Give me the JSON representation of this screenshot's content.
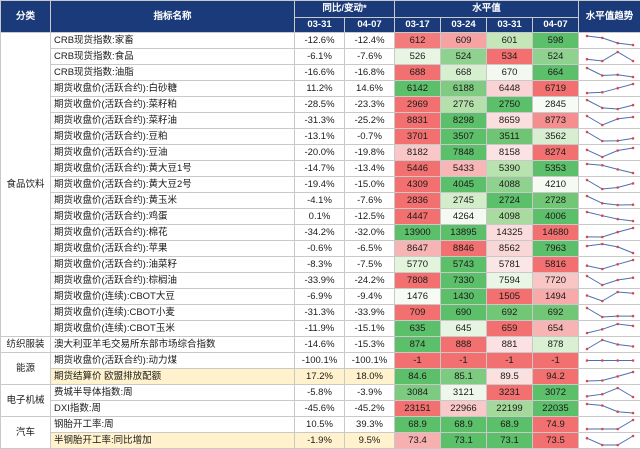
{
  "header": {
    "category": "分类",
    "indicator": "指标名称",
    "yoy_group": "同比/变动*",
    "level_group": "水平值",
    "trend": "水平值趋势",
    "yoy_dates": [
      "03-31",
      "04-07"
    ],
    "level_dates": [
      "03-17",
      "03-24",
      "03-31",
      "04-07"
    ]
  },
  "categories": [
    {
      "label": "食品饮料",
      "start": 0,
      "span": 19
    },
    {
      "label": "纺织服装",
      "start": 19,
      "span": 1
    },
    {
      "label": "能源",
      "start": 20,
      "span": 2
    },
    {
      "label": "电子机械",
      "start": 22,
      "span": 2
    },
    {
      "label": "汽车",
      "start": 24,
      "span": 2
    }
  ],
  "rows": [
    {
      "name": "CRB现货指数:家畜",
      "yoy": [
        "-12.6%",
        "-12.4%"
      ],
      "levels": [
        "612",
        "609",
        "601",
        "598"
      ],
      "level_colors": [
        "#f37b7b",
        "#f6a3a3",
        "#c4e6b8",
        "#5cbf6a"
      ]
    },
    {
      "name": "CRB现货指数:食品",
      "yoy": [
        "-6.1%",
        "-7.6%"
      ],
      "levels": [
        "526",
        "524",
        "534",
        "524"
      ],
      "level_colors": [
        "#e8f5e2",
        "#8fd18f",
        "#f27070",
        "#8fd18f"
      ]
    },
    {
      "name": "CRB现货指数:油脂",
      "yoy": [
        "-16.6%",
        "-16.8%"
      ],
      "levels": [
        "688",
        "668",
        "670",
        "664"
      ],
      "level_colors": [
        "#f27070",
        "#d6efcf",
        "#f3f8f0",
        "#5cbf6a"
      ]
    },
    {
      "name": "期货收盘价(活跃合约):白砂糖",
      "yoy": [
        "11.2%",
        "14.6%"
      ],
      "levels": [
        "6142",
        "6188",
        "6448",
        "6719"
      ],
      "level_colors": [
        "#5cbf6a",
        "#7fcb82",
        "#fad4d4",
        "#f27070"
      ]
    },
    {
      "name": "期货收盘价(活跃合约):菜籽粕",
      "yoy": [
        "-28.5%",
        "-23.3%"
      ],
      "levels": [
        "2969",
        "2776",
        "2750",
        "2845"
      ],
      "level_colors": [
        "#f27070",
        "#b5e0ac",
        "#5cbf6a",
        "#f7fbf5"
      ]
    },
    {
      "name": "期货收盘价(活跃合约):菜籽油",
      "yoy": [
        "-31.3%",
        "-25.2%"
      ],
      "levels": [
        "8831",
        "8298",
        "8659",
        "8773"
      ],
      "level_colors": [
        "#f27070",
        "#5cbf6a",
        "#fbdede",
        "#f58f8f"
      ]
    },
    {
      "name": "期货收盘价(活跃合约):豆粕",
      "yoy": [
        "-13.1%",
        "-0.7%"
      ],
      "levels": [
        "3701",
        "3507",
        "3511",
        "3562"
      ],
      "level_colors": [
        "#f27070",
        "#5cbf6a",
        "#6fc573",
        "#d7efd0"
      ]
    },
    {
      "name": "期货收盘价(活跃合约):豆油",
      "yoy": [
        "-20.0%",
        "-19.8%"
      ],
      "levels": [
        "8182",
        "7848",
        "8158",
        "8274"
      ],
      "level_colors": [
        "#f9c7c7",
        "#5cbf6a",
        "#fbe3e3",
        "#f27070"
      ]
    },
    {
      "name": "期货收盘价(活跃合约):黄大豆1号",
      "yoy": [
        "-14.7%",
        "-13.4%"
      ],
      "levels": [
        "5446",
        "5433",
        "5390",
        "5353"
      ],
      "level_colors": [
        "#f27070",
        "#f8b6b6",
        "#b8e2ae",
        "#5cbf6a"
      ]
    },
    {
      "name": "期货收盘价(活跃合约):黄大豆2号",
      "yoy": [
        "-19.4%",
        "-15.0%"
      ],
      "levels": [
        "4309",
        "4045",
        "4088",
        "4210"
      ],
      "level_colors": [
        "#f27070",
        "#5cbf6a",
        "#8fd18f",
        "#f5fbf3"
      ]
    },
    {
      "name": "期货收盘价(活跃合约):黄玉米",
      "yoy": [
        "-4.1%",
        "-7.6%"
      ],
      "levels": [
        "2836",
        "2745",
        "2724",
        "2728"
      ],
      "level_colors": [
        "#f27070",
        "#d3edcb",
        "#5cbf6a",
        "#72c777"
      ]
    },
    {
      "name": "期货收盘价(活跃合约):鸡蛋",
      "yoy": [
        "0.1%",
        "-12.5%"
      ],
      "levels": [
        "4447",
        "4264",
        "4098",
        "4006"
      ],
      "level_colors": [
        "#f27070",
        "#f4f9f1",
        "#a9dba0",
        "#5cbf6a"
      ]
    },
    {
      "name": "期货收盘价(活跃合约):棉花",
      "yoy": [
        "-34.2%",
        "-32.0%"
      ],
      "levels": [
        "13900",
        "13895",
        "14325",
        "14680"
      ],
      "level_colors": [
        "#5cbf6a",
        "#5cbf6a",
        "#fadcdc",
        "#f27070"
      ]
    },
    {
      "name": "期货收盘价(活跃合约):苹果",
      "yoy": [
        "-0.6%",
        "-6.5%"
      ],
      "levels": [
        "8647",
        "8846",
        "8562",
        "7963"
      ],
      "level_colors": [
        "#f7b4b4",
        "#f27070",
        "#fad7d7",
        "#5cbf6a"
      ]
    },
    {
      "name": "期货收盘价(活跃合约):油菜籽",
      "yoy": [
        "-8.3%",
        "-7.5%"
      ],
      "levels": [
        "5770",
        "5743",
        "5781",
        "5816"
      ],
      "level_colors": [
        "#e3f4dd",
        "#5cbf6a",
        "#fbe6e6",
        "#f27070"
      ]
    },
    {
      "name": "期货收盘价(活跃合约):棕榈油",
      "yoy": [
        "-33.9%",
        "-24.2%"
      ],
      "levels": [
        "7808",
        "7330",
        "7594",
        "7720"
      ],
      "level_colors": [
        "#f27070",
        "#5cbf6a",
        "#e9f6e5",
        "#f9c6c6"
      ]
    },
    {
      "name": "期货收盘价(连续):CBOT大豆",
      "yoy": [
        "-6.9%",
        "-9.4%"
      ],
      "levels": [
        "1476",
        "1430",
        "1505",
        "1494"
      ],
      "level_colors": [
        "#f6fbf4",
        "#5cbf6a",
        "#f27070",
        "#f7aaaa"
      ]
    },
    {
      "name": "期货收盘价(连续):CBOT小麦",
      "yoy": [
        "-31.3%",
        "-33.9%"
      ],
      "levels": [
        "709",
        "690",
        "692",
        "692"
      ],
      "level_colors": [
        "#f27070",
        "#5cbf6a",
        "#72c777",
        "#72c777"
      ]
    },
    {
      "name": "期货收盘价(连续):CBOT玉米",
      "yoy": [
        "-11.9%",
        "-15.1%"
      ],
      "levels": [
        "635",
        "645",
        "659",
        "654"
      ],
      "level_colors": [
        "#5cbf6a",
        "#e6f5e1",
        "#f27070",
        "#f8b3b3"
      ]
    },
    {
      "name": "澳大利亚羊毛交易所东部市场综合指数",
      "yoy": [
        "-14.6%",
        "-15.3%"
      ],
      "levels": [
        "874",
        "888",
        "881",
        "878"
      ],
      "level_colors": [
        "#5cbf6a",
        "#f27070",
        "#fbe1e1",
        "#d9f0d2"
      ]
    },
    {
      "name": "期货收盘价(活跃合约):动力煤",
      "yoy": [
        "-100.1%",
        "-100.1%"
      ],
      "levels": [
        "-1",
        "-1",
        "-1",
        "-1"
      ],
      "level_colors": [
        "#f27070",
        "#f27070",
        "#f27070",
        "#f27070"
      ]
    },
    {
      "name": "期货结算价 欧盟排放配额",
      "yoy": [
        "17.2%",
        "18.0%"
      ],
      "levels": [
        "84.6",
        "85.1",
        "89.5",
        "94.2"
      ],
      "level_colors": [
        "#5cbf6a",
        "#7ccb80",
        "#fbe0e0",
        "#f27070"
      ]
    },
    {
      "name": "费城半导体指数:周",
      "yoy": [
        "-5.8%",
        "-3.9%"
      ],
      "levels": [
        "3084",
        "3121",
        "3231",
        "3072"
      ],
      "level_colors": [
        "#7ccb80",
        "#eef8ea",
        "#f27070",
        "#5cbf6a"
      ]
    },
    {
      "name": "DXI指数:周",
      "yoy": [
        "-45.6%",
        "-45.2%"
      ],
      "levels": [
        "23151",
        "22966",
        "22199",
        "22035"
      ],
      "level_colors": [
        "#f27070",
        "#f9c9c9",
        "#a4d99b",
        "#5cbf6a"
      ]
    },
    {
      "name": "钢胎开工率:周",
      "yoy": [
        "10.5%",
        "39.3%"
      ],
      "levels": [
        "68.9",
        "68.9",
        "68.9",
        "74.9"
      ],
      "level_colors": [
        "#5cbf6a",
        "#5cbf6a",
        "#5cbf6a",
        "#f27070"
      ]
    },
    {
      "name": "半钢胎开工率:同比增加",
      "yoy": [
        "-1.9%",
        "9.5%"
      ],
      "levels": [
        "73.4",
        "73.1",
        "73.1",
        "73.5"
      ],
      "level_colors": [
        "#f7b0b0",
        "#5cbf6a",
        "#5cbf6a",
        "#f27070"
      ]
    }
  ],
  "highlight_rows": [
    21,
    25
  ],
  "colors": {
    "header_bg": "#1b3a7a",
    "highlight_bg": "#fff2cc",
    "spark_line": "#4a6fb5",
    "spark_marker": "#e04646",
    "high": "#f27070",
    "low": "#5cbf6a"
  }
}
